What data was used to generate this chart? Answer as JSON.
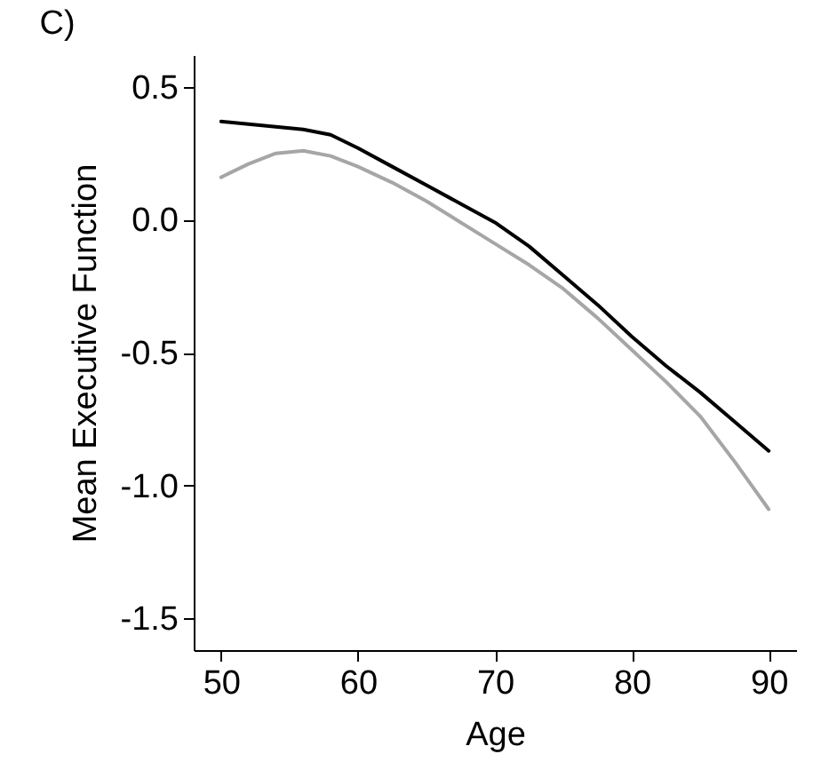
{
  "chart_data": {
    "type": "line",
    "title": "C)",
    "xlabel": "Age",
    "ylabel": "Mean Executive Function",
    "x": [
      50,
      52,
      54,
      56,
      58,
      60,
      62.5,
      65,
      67.5,
      70,
      72.5,
      75,
      77.5,
      80,
      82.5,
      85,
      87.5,
      90
    ],
    "series": [
      {
        "color": "#000000",
        "values": [
          0.37,
          0.36,
          0.35,
          0.34,
          0.32,
          0.27,
          0.2,
          0.13,
          0.06,
          -0.01,
          -0.1,
          -0.21,
          -0.32,
          -0.44,
          -0.55,
          -0.65,
          -0.76,
          -0.87
        ]
      },
      {
        "color": "#a6a6a6",
        "values": [
          0.16,
          0.21,
          0.25,
          0.26,
          0.24,
          0.2,
          0.14,
          0.07,
          -0.01,
          -0.09,
          -0.17,
          -0.26,
          -0.37,
          -0.49,
          -0.61,
          -0.74,
          -0.91,
          -1.09
        ]
      }
    ],
    "xlim": [
      48,
      92
    ],
    "xticks": [
      50,
      60,
      70,
      80,
      90
    ],
    "ylim": [
      -1.62,
      0.62
    ],
    "yticks": [
      {
        "value": -1.5,
        "label": "-1.5"
      },
      {
        "value": -1,
        "label": "-1.0"
      },
      {
        "value": -0.5,
        "label": "-0.5"
      },
      {
        "value": 0,
        "label": "0.0"
      },
      {
        "value": 0.5,
        "label": "0.5"
      }
    ],
    "grid": false
  }
}
